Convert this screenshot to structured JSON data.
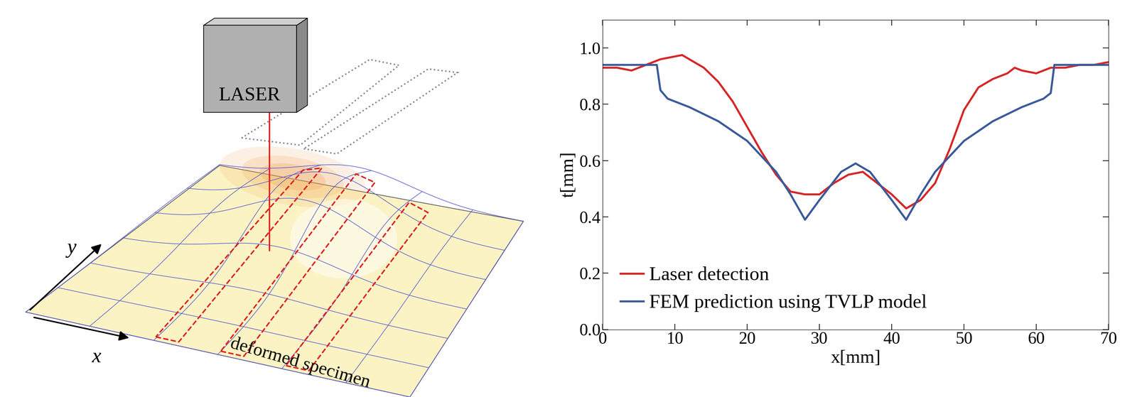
{
  "diagram": {
    "laser": "LASER",
    "specimen": "deformed specimen",
    "x_axis": "x",
    "y_axis": "y"
  },
  "chart_data": {
    "type": "line",
    "x_label": "x[mm]",
    "y_label": "t[mm]",
    "xlim": [
      0,
      70
    ],
    "ylim": [
      0.0,
      1.1
    ],
    "xticks": [
      0,
      10,
      20,
      30,
      40,
      50,
      60,
      70
    ],
    "yticks": [
      0.0,
      0.2,
      0.4,
      0.6,
      0.8,
      1.0
    ],
    "legend": "lower left",
    "series": [
      {
        "name": "Laser detection",
        "color": "#d62728",
        "line_style": "solid",
        "x": [
          0,
          2,
          4,
          6,
          8,
          10,
          11,
          12,
          14,
          16,
          18,
          20,
          22,
          24,
          26,
          28,
          30,
          32,
          34,
          36,
          38,
          40,
          42,
          44,
          46,
          48,
          50,
          52,
          54,
          56,
          57,
          58,
          60,
          62,
          64,
          66,
          68,
          70
        ],
        "values": [
          0.93,
          0.93,
          0.92,
          0.94,
          0.96,
          0.97,
          0.975,
          0.96,
          0.93,
          0.88,
          0.81,
          0.72,
          0.63,
          0.55,
          0.49,
          0.48,
          0.48,
          0.52,
          0.55,
          0.56,
          0.52,
          0.48,
          0.43,
          0.46,
          0.52,
          0.64,
          0.78,
          0.86,
          0.89,
          0.91,
          0.93,
          0.92,
          0.91,
          0.93,
          0.93,
          0.94,
          0.94,
          0.95
        ]
      },
      {
        "name": "FEM prediction using TVLP model",
        "color": "#3a5a9a",
        "line_style": "solid",
        "x": [
          0,
          7.5,
          8,
          9,
          12,
          16,
          20,
          24,
          26,
          28,
          30,
          33,
          35,
          37,
          40,
          42,
          44,
          46,
          50,
          54,
          58,
          61,
          62,
          62.5,
          70
        ],
        "values": [
          0.94,
          0.94,
          0.85,
          0.82,
          0.79,
          0.74,
          0.67,
          0.56,
          0.48,
          0.39,
          0.46,
          0.56,
          0.59,
          0.56,
          0.46,
          0.39,
          0.48,
          0.56,
          0.67,
          0.74,
          0.79,
          0.82,
          0.84,
          0.94,
          0.94
        ]
      }
    ]
  }
}
